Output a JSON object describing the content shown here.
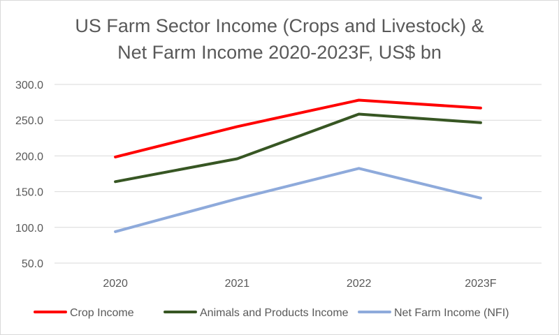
{
  "chart_data": {
    "type": "line",
    "title_line1": "US Farm Sector Income (Crops and Livestock) &",
    "title_line2": "Net Farm Income 2020-2023F, US$ bn",
    "categories": [
      "2020",
      "2021",
      "2022",
      "2023F"
    ],
    "ylim": [
      50,
      300
    ],
    "yticks": [
      50,
      100,
      150,
      200,
      250,
      300
    ],
    "ytick_labels": [
      "50.0",
      "100.0",
      "150.0",
      "200.0",
      "250.0",
      "300.0"
    ],
    "grid": true,
    "legend_position": "bottom",
    "series": [
      {
        "name": "Crop Income",
        "color": "#ff0000",
        "values": [
          198.5,
          241.0,
          278.0,
          267.0
        ]
      },
      {
        "name": "Animals and Products Income",
        "color": "#375623",
        "values": [
          164.0,
          196.0,
          258.5,
          246.5
        ]
      },
      {
        "name": "Net Farm Income (NFI)",
        "color": "#8eaadb",
        "values": [
          94.0,
          140.0,
          182.5,
          141.0
        ]
      }
    ]
  }
}
